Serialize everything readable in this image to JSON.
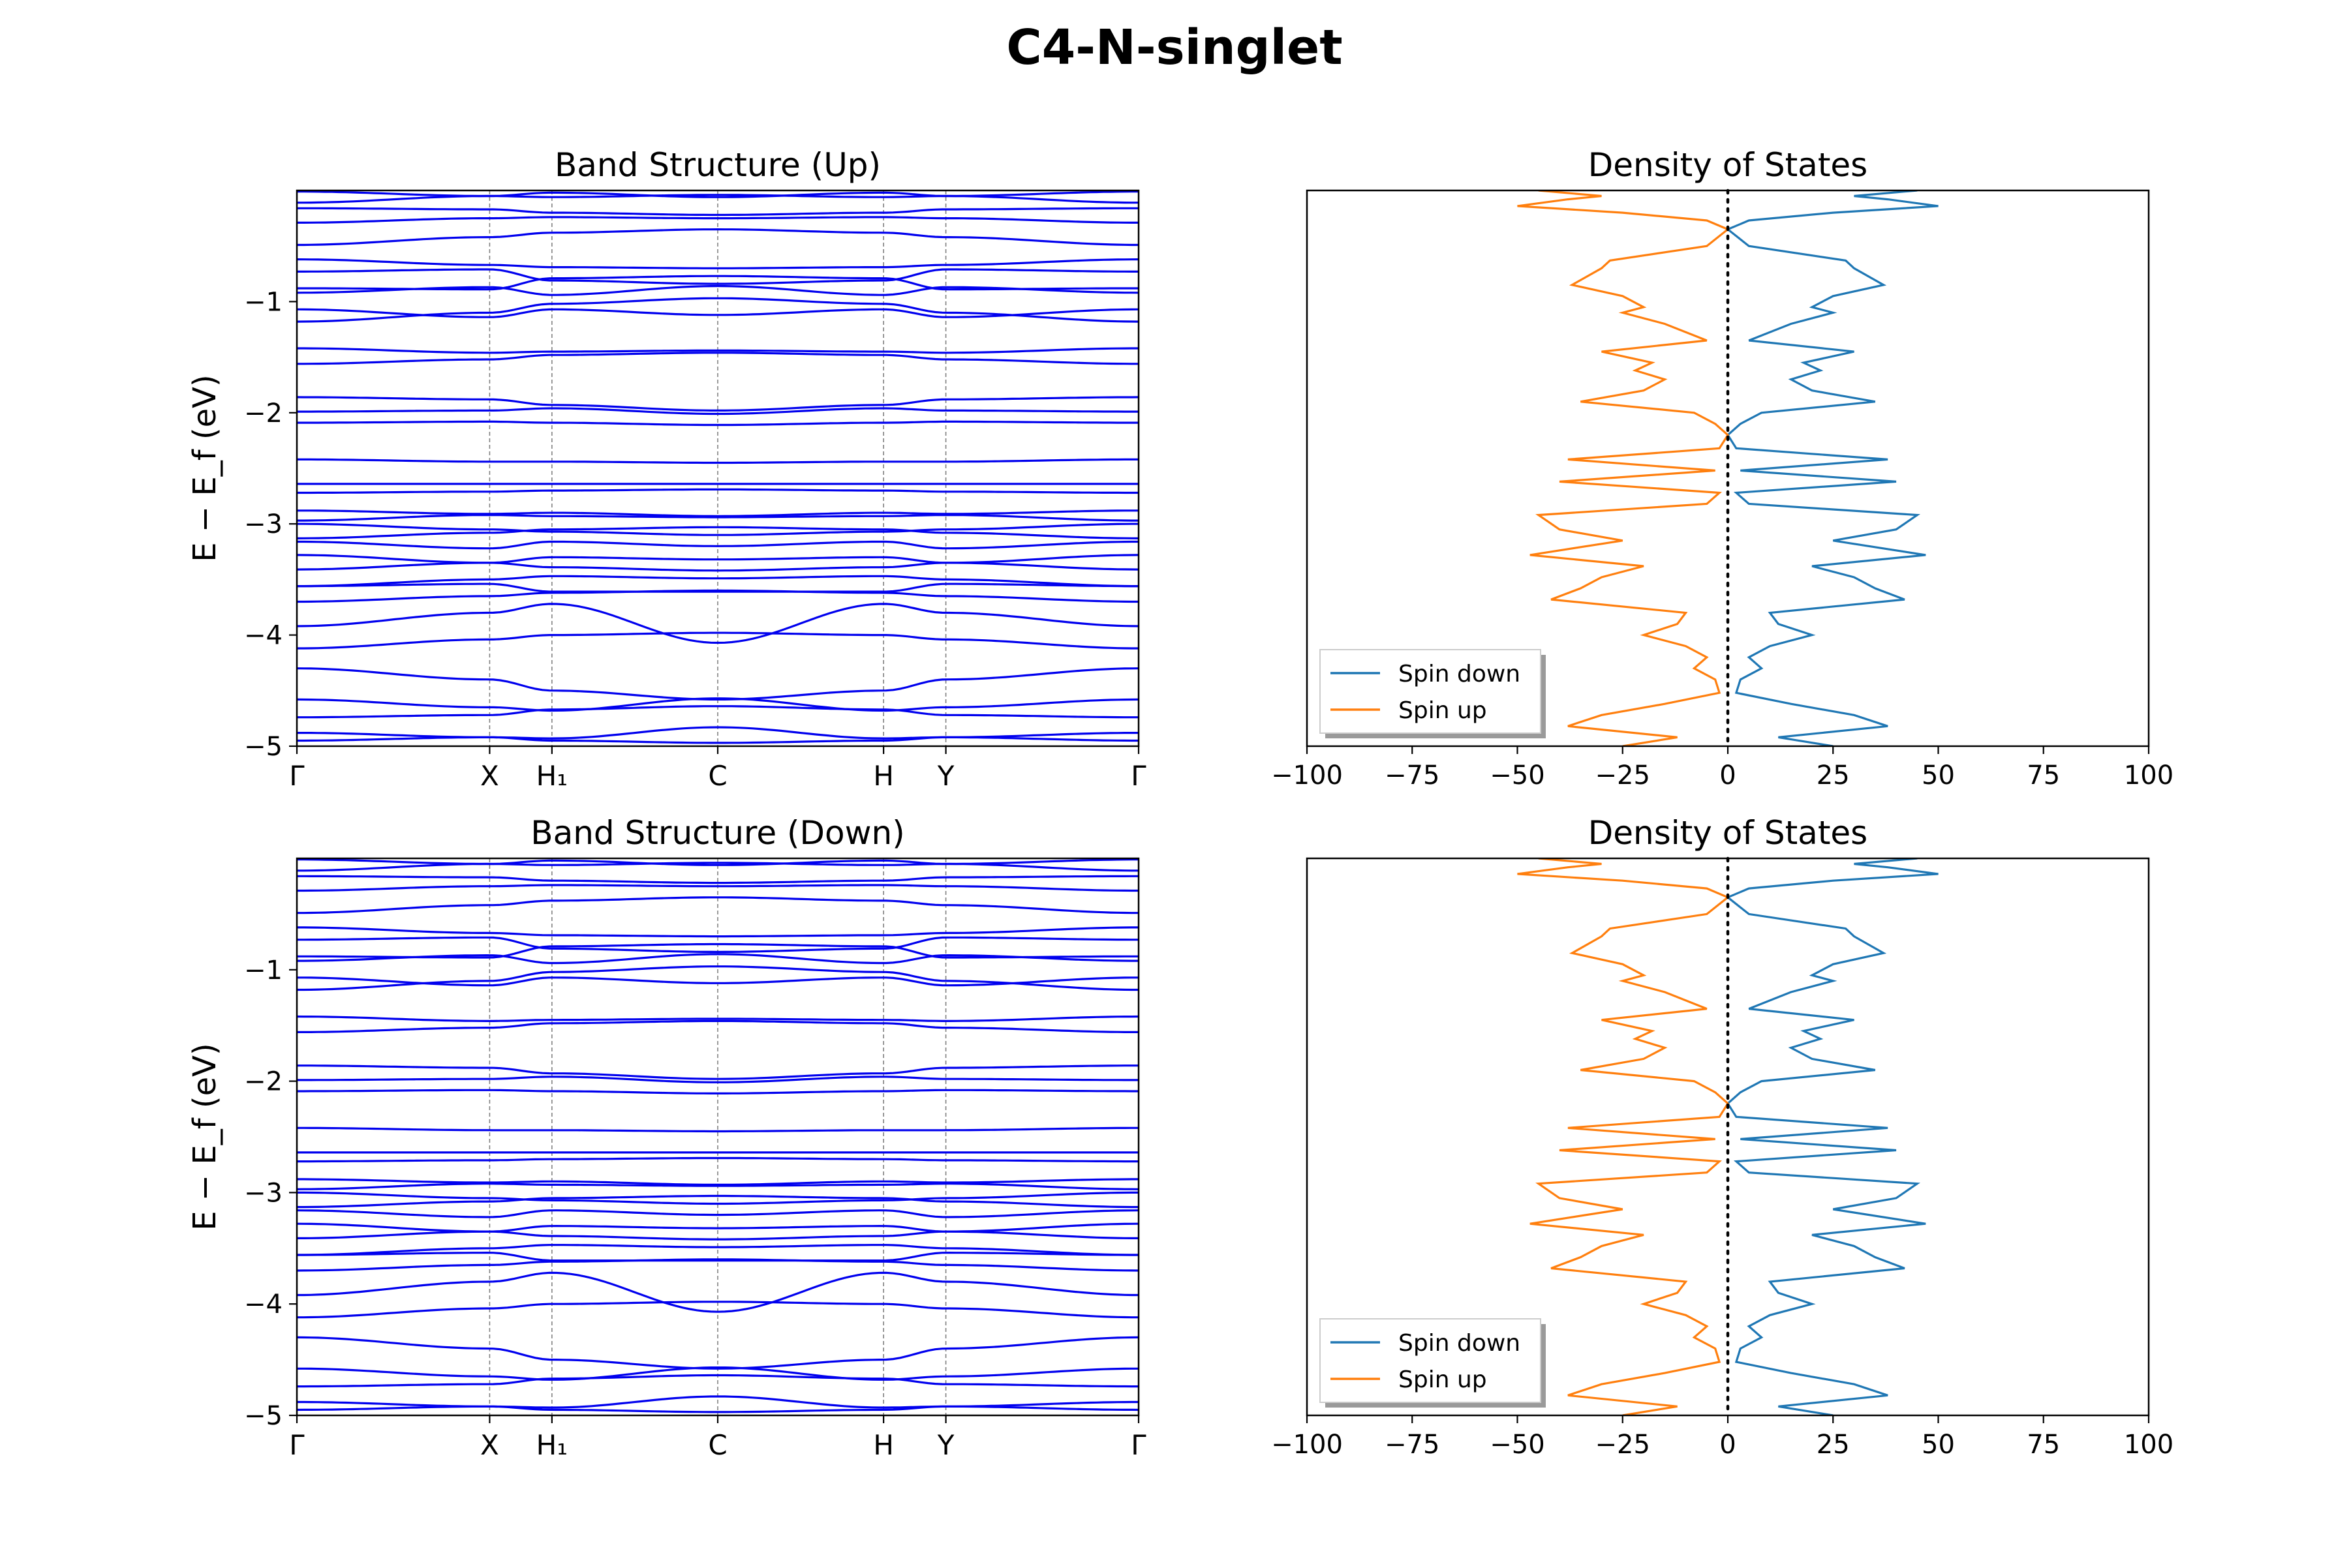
{
  "figure_title": "C4-N-singlet",
  "colors": {
    "band": "#0000ee",
    "spin_down": "#1f77b4",
    "spin_up": "#ff7f0e",
    "kpath_line": "#808080",
    "fermi_line": "#000000"
  },
  "chart_data": [
    {
      "type": "line",
      "title": "Band Structure (Up)",
      "ylabel": "E − E_f (eV)",
      "ylim": [
        -5,
        0
      ],
      "yticks": [
        "−5",
        "−4",
        "−3",
        "−2",
        "−1"
      ],
      "ytick_values": [
        -5,
        -4,
        -3,
        -2,
        -1
      ],
      "kpoints": [
        "Γ",
        "X",
        "H₁",
        "C",
        "H",
        "Y",
        "Γ"
      ],
      "kpoint_positions": [
        0,
        0.229,
        0.303,
        0.5,
        0.697,
        0.771,
        1
      ],
      "grid": false,
      "bands": [
        {
          "e": -0.03,
          "v": [
            0.02,
            -0.02,
            0.01,
            -0.03,
            0.01,
            -0.02,
            0.02
          ]
        },
        {
          "e": -0.08,
          "v": [
            -0.03,
            0.03,
            0.02,
            0.04,
            0.02,
            0.03,
            -0.03
          ]
        },
        {
          "e": -0.18,
          "v": [
            0.02,
            0.01,
            -0.02,
            -0.04,
            -0.02,
            0.01,
            0.02
          ]
        },
        {
          "e": -0.27,
          "v": [
            -0.02,
            0.02,
            0.03,
            0.02,
            0.03,
            0.02,
            -0.02
          ]
        },
        {
          "e": -0.47,
          "v": [
            -0.02,
            0.05,
            0.09,
            0.12,
            0.09,
            0.05,
            -0.02
          ]
        },
        {
          "e": -0.64,
          "v": [
            0.02,
            -0.03,
            -0.05,
            -0.06,
            -0.05,
            -0.03,
            0.02
          ]
        },
        {
          "e": -0.76,
          "v": [
            0.03,
            0.05,
            -0.05,
            -0.08,
            -0.05,
            0.05,
            0.03
          ]
        },
        {
          "e": -0.85,
          "v": [
            -0.03,
            -0.04,
            0.06,
            0.08,
            0.06,
            -0.04,
            -0.03
          ]
        },
        {
          "e": -0.92,
          "v": [
            0.0,
            0.05,
            -0.02,
            0.06,
            -0.02,
            0.05,
            0.0
          ]
        },
        {
          "e": -1.1,
          "v": [
            0.03,
            -0.04,
            0.03,
            -0.02,
            0.03,
            -0.04,
            0.03
          ]
        },
        {
          "e": -1.15,
          "v": [
            -0.03,
            0.05,
            0.13,
            0.18,
            0.13,
            0.05,
            -0.03
          ]
        },
        {
          "e": -1.42,
          "v": [
            0.0,
            -0.04,
            -0.03,
            -0.02,
            -0.03,
            -0.04,
            0.0
          ]
        },
        {
          "e": -1.58,
          "v": [
            0.02,
            0.06,
            0.1,
            0.12,
            0.1,
            0.06,
            0.02
          ]
        },
        {
          "e": -1.9,
          "v": [
            0.04,
            0.02,
            -0.03,
            -0.08,
            -0.03,
            0.02,
            0.04
          ]
        },
        {
          "e": -1.96,
          "v": [
            -0.03,
            -0.02,
            0.0,
            -0.05,
            0.0,
            -0.02,
            -0.03
          ]
        },
        {
          "e": -2.09,
          "v": [
            0.0,
            0.01,
            0.0,
            -0.02,
            0.0,
            0.01,
            0.0
          ]
        },
        {
          "e": -2.42,
          "v": [
            0.0,
            -0.02,
            -0.02,
            -0.03,
            -0.02,
            -0.02,
            0.0
          ]
        },
        {
          "e": -2.64,
          "v": [
            0.0,
            0.0,
            0.0,
            0.0,
            0.0,
            0.0,
            0.0
          ]
        },
        {
          "e": -2.72,
          "v": [
            0.0,
            0.01,
            0.02,
            0.03,
            0.02,
            0.01,
            0.0
          ]
        },
        {
          "e": -2.88,
          "v": [
            0.0,
            -0.03,
            -0.02,
            -0.05,
            -0.02,
            -0.03,
            0.0
          ]
        },
        {
          "e": -2.95,
          "v": [
            -0.02,
            0.03,
            0.02,
            0.01,
            0.02,
            0.03,
            -0.02
          ]
        },
        {
          "e": -3.03,
          "v": [
            0.03,
            -0.02,
            -0.04,
            -0.07,
            -0.04,
            -0.02,
            0.03
          ]
        },
        {
          "e": -3.1,
          "v": [
            -0.03,
            0.02,
            0.05,
            0.07,
            0.05,
            0.02,
            -0.03
          ]
        },
        {
          "e": -3.18,
          "v": [
            0.02,
            -0.04,
            0.02,
            -0.02,
            0.02,
            -0.04,
            0.02
          ]
        },
        {
          "e": -3.3,
          "v": [
            0.02,
            -0.05,
            -0.09,
            -0.12,
            -0.09,
            -0.05,
            0.02
          ]
        },
        {
          "e": -3.38,
          "v": [
            -0.03,
            0.03,
            0.08,
            0.06,
            0.08,
            0.03,
            -0.03
          ]
        },
        {
          "e": -3.52,
          "v": [
            -0.04,
            0.02,
            0.05,
            0.03,
            0.05,
            0.02,
            -0.04
          ]
        },
        {
          "e": -3.59,
          "v": [
            0.03,
            0.05,
            -0.02,
            -0.02,
            -0.02,
            0.05,
            0.03
          ]
        },
        {
          "e": -3.7,
          "v": [
            0.0,
            0.05,
            0.08,
            0.1,
            0.08,
            0.05,
            0.0
          ]
        },
        {
          "e": -3.92,
          "v": [
            0.0,
            0.12,
            0.2,
            -0.15,
            0.2,
            0.12,
            0.0
          ]
        },
        {
          "e": -4.12,
          "v": [
            0.0,
            0.08,
            0.12,
            0.14,
            0.12,
            0.08,
            0.0
          ]
        },
        {
          "e": -4.3,
          "v": [
            0.0,
            -0.1,
            -0.2,
            -0.28,
            -0.2,
            -0.1,
            0.0
          ]
        },
        {
          "e": -4.6,
          "v": [
            0.02,
            -0.05,
            -0.08,
            0.03,
            -0.08,
            -0.05,
            0.02
          ]
        },
        {
          "e": -4.72,
          "v": [
            -0.02,
            0.0,
            0.05,
            0.08,
            0.05,
            0.0,
            -0.02
          ]
        },
        {
          "e": -4.88,
          "v": [
            0.0,
            -0.04,
            -0.05,
            0.05,
            -0.05,
            -0.04,
            0.0
          ]
        },
        {
          "e": -4.97,
          "v": [
            0.02,
            0.05,
            0.02,
            0.0,
            0.02,
            0.05,
            0.02
          ]
        }
      ]
    },
    {
      "type": "line",
      "title": "Density of States",
      "xlim": [
        -100,
        100
      ],
      "ylim": [
        -5,
        0
      ],
      "xticks": [
        "−100",
        "−75",
        "−50",
        "−25",
        "0",
        "25",
        "50",
        "75",
        "100"
      ],
      "xtick_values": [
        -100,
        -75,
        -50,
        -25,
        0,
        25,
        50,
        75,
        100
      ],
      "legend_position": "lower-left",
      "grid": false,
      "fermi_line_at": 0,
      "series": [
        {
          "name": "Spin down",
          "sign": 1
        },
        {
          "name": "Spin up",
          "sign": -1
        }
      ],
      "dos_points": [
        [
          0.0,
          45
        ],
        [
          -0.05,
          30
        ],
        [
          -0.08,
          38
        ],
        [
          -0.14,
          50
        ],
        [
          -0.2,
          25
        ],
        [
          -0.27,
          5
        ],
        [
          -0.35,
          0
        ],
        [
          -0.5,
          5
        ],
        [
          -0.63,
          28
        ],
        [
          -0.7,
          30
        ],
        [
          -0.85,
          37
        ],
        [
          -0.95,
          25
        ],
        [
          -1.05,
          20
        ],
        [
          -1.1,
          25
        ],
        [
          -1.2,
          15
        ],
        [
          -1.35,
          5
        ],
        [
          -1.45,
          30
        ],
        [
          -1.55,
          18
        ],
        [
          -1.62,
          22
        ],
        [
          -1.7,
          15
        ],
        [
          -1.8,
          20
        ],
        [
          -1.9,
          35
        ],
        [
          -2.0,
          8
        ],
        [
          -2.1,
          3
        ],
        [
          -2.2,
          0
        ],
        [
          -2.32,
          2
        ],
        [
          -2.42,
          38
        ],
        [
          -2.52,
          3
        ],
        [
          -2.62,
          40
        ],
        [
          -2.72,
          2
        ],
        [
          -2.82,
          5
        ],
        [
          -2.92,
          45
        ],
        [
          -3.05,
          40
        ],
        [
          -3.15,
          25
        ],
        [
          -3.28,
          47
        ],
        [
          -3.38,
          20
        ],
        [
          -3.48,
          30
        ],
        [
          -3.58,
          35
        ],
        [
          -3.68,
          42
        ],
        [
          -3.8,
          10
        ],
        [
          -3.9,
          12
        ],
        [
          -4.0,
          20
        ],
        [
          -4.1,
          10
        ],
        [
          -4.2,
          5
        ],
        [
          -4.3,
          8
        ],
        [
          -4.4,
          3
        ],
        [
          -4.52,
          2
        ],
        [
          -4.62,
          15
        ],
        [
          -4.72,
          30
        ],
        [
          -4.82,
          38
        ],
        [
          -4.92,
          12
        ],
        [
          -5.0,
          25
        ]
      ]
    },
    {
      "type": "line",
      "title": "Band Structure (Down)",
      "ylabel": "E − E_f (eV)",
      "ylim": [
        -5,
        0
      ],
      "yticks": [
        "−5",
        "−4",
        "−3",
        "−2",
        "−1"
      ],
      "ytick_values": [
        -5,
        -4,
        -3,
        -2,
        -1
      ],
      "kpoints": [
        "Γ",
        "X",
        "H₁",
        "C",
        "H",
        "Y",
        "Γ"
      ],
      "kpoint_positions": [
        0,
        0.229,
        0.303,
        0.5,
        0.697,
        0.771,
        1
      ],
      "grid": false,
      "same_bands_as": "Band Structure (Up)"
    },
    {
      "type": "line",
      "title": "Density of States",
      "xlim": [
        -100,
        100
      ],
      "ylim": [
        -5,
        0
      ],
      "xticks": [
        "−100",
        "−75",
        "−50",
        "−25",
        "0",
        "25",
        "50",
        "75",
        "100"
      ],
      "xtick_values": [
        -100,
        -75,
        -50,
        -25,
        0,
        25,
        50,
        75,
        100
      ],
      "legend_position": "lower-left",
      "grid": false,
      "fermi_line_at": 0,
      "series": [
        {
          "name": "Spin down",
          "sign": 1
        },
        {
          "name": "Spin up",
          "sign": -1
        }
      ],
      "same_dos_as": "Density of States"
    }
  ]
}
